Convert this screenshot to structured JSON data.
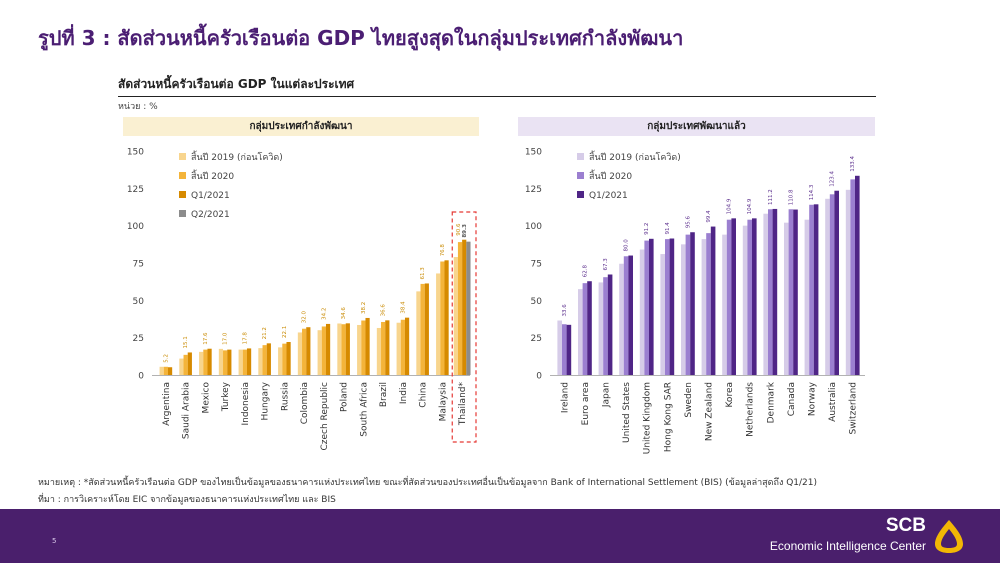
{
  "slide": {
    "title": "รูปที่ 3 : สัดส่วนหนี้ครัวเรือนต่อ GDP ไทยสูงสุดในกลุ่มประเทศกำลังพัฒนา",
    "chart_heading": "สัดส่วนหนี้ครัวเรือนต่อ GDP ในแต่ละประเทศ",
    "unit": "หน่วย : %",
    "footnote": "หมายเหตุ : *สัดส่วนหนี้ครัวเรือนต่อ GDP ของไทยเป็นข้อมูลของธนาคารแห่งประเทศไทย ขณะที่สัดส่วนของประเทศอื่นเป็นข้อมูลจาก Bank of International Settlement (BIS) (ข้อมูลล่าสุดถึง Q1/21)",
    "source": "ที่มา : การวิเคราะห์โดย EIC จากข้อมูลของธนาคารแห่งประเทศไทย และ BIS",
    "page_number": "5",
    "brand_name": "SCB",
    "brand_unit": "Economic Intelligence Center"
  },
  "colors": {
    "title": "#4b1e73",
    "footer": "#4a1f6c",
    "left_series": [
      "#f8d58e",
      "#f4b43a",
      "#d68a00",
      "#8c8c8c"
    ],
    "right_series": [
      "#d6cce8",
      "#9b7fd0",
      "#4f2586"
    ],
    "highlight_box": "#e53935"
  },
  "chart_data": [
    {
      "type": "bar",
      "title": "กลุ่มประเทศกำลังพัฒนา",
      "ylim": [
        0,
        150
      ],
      "yticks": [
        0,
        25,
        50,
        75,
        100,
        125,
        150
      ],
      "categories": [
        "Argentina",
        "Saudi Arabia",
        "Mexico",
        "Turkey",
        "Indonesia",
        "Hungary",
        "Russia",
        "Colombia",
        "Czech Republic",
        "Poland",
        "South Africa",
        "Brazil",
        "India",
        "China",
        "Malaysia",
        "Thailand*"
      ],
      "series": [
        {
          "name": "สิ้นปี 2019 (ก่อนโควิด)",
          "values": [
            5.5,
            11.0,
            15.5,
            17.5,
            17.0,
            18.0,
            18.5,
            28.5,
            30.0,
            34.5,
            33.5,
            31.5,
            35.0,
            56.0,
            68.0,
            79.0
          ]
        },
        {
          "name": "สิ้นปี 2020",
          "values": [
            5.5,
            13.5,
            17.0,
            16.5,
            17.0,
            20.0,
            21.0,
            31.0,
            32.5,
            34.0,
            36.5,
            35.5,
            37.0,
            61.0,
            76.0,
            89.0
          ]
        },
        {
          "name": "Q1/2021",
          "values": [
            5.2,
            15.1,
            17.6,
            17.0,
            17.8,
            21.2,
            22.1,
            32.0,
            34.2,
            34.6,
            38.2,
            36.6,
            38.4,
            61.3,
            76.8,
            90.6
          ]
        },
        {
          "name": "Q2/2021",
          "values": [
            null,
            null,
            null,
            null,
            null,
            null,
            null,
            null,
            null,
            null,
            null,
            null,
            null,
            null,
            null,
            89.3
          ]
        }
      ],
      "data_labels": [
        "5.2",
        "15.1",
        "17.6",
        "17.0",
        "17.8",
        "21.2",
        "22.1",
        "32.0",
        "34.2",
        "34.6",
        "38.2",
        "36.6",
        "38.4",
        "61.3",
        "76.8",
        "90.6"
      ],
      "extra_label": "89.3",
      "highlight": "Thailand*",
      "legend_position": "top-left"
    },
    {
      "type": "bar",
      "title": "กลุ่มประเทศพัฒนาแล้ว",
      "ylim": [
        0,
        150
      ],
      "yticks": [
        0,
        25,
        50,
        75,
        100,
        125,
        150
      ],
      "categories": [
        "Ireland",
        "Euro area",
        "Japan",
        "United States",
        "United Kingdom",
        "Hong Kong SAR",
        "Sweden",
        "New Zealand",
        "Korea",
        "Netherlands",
        "Denmark",
        "Canada",
        "Norway",
        "Australia",
        "Switzerland"
      ],
      "series": [
        {
          "name": "สิ้นปี 2019 (ก่อนโควิด)",
          "values": [
            36.5,
            57.5,
            62.0,
            74.5,
            84.0,
            81.0,
            87.5,
            91.0,
            94.0,
            100.0,
            108.0,
            102.0,
            104.0,
            118.0,
            124.0
          ]
        },
        {
          "name": "สิ้นปี 2020",
          "values": [
            34.0,
            61.5,
            65.5,
            79.5,
            90.0,
            91.0,
            94.0,
            95.0,
            104.0,
            104.0,
            111.0,
            111.0,
            114.0,
            121.0,
            131.0
          ]
        },
        {
          "name": "Q1/2021",
          "values": [
            33.6,
            62.8,
            67.3,
            80.0,
            91.2,
            91.4,
            95.6,
            99.4,
            104.9,
            104.9,
            111.2,
            110.8,
            114.3,
            123.4,
            133.4
          ]
        }
      ],
      "data_labels": [
        "33.6",
        "62.8",
        "67.3",
        "80.0",
        "91.2",
        "91.4",
        "95.6",
        "99.4",
        "104.9",
        "104.9",
        "111.2",
        "110.8",
        "114.3",
        "123.4",
        "133.4"
      ],
      "legend_position": "top-left"
    }
  ]
}
